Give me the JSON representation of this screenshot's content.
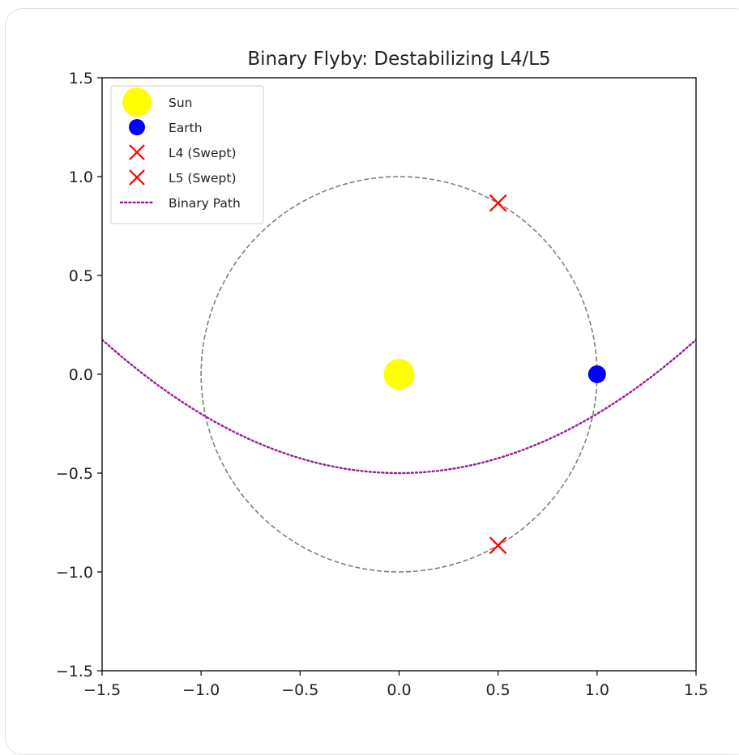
{
  "chart_data": {
    "type": "scatter",
    "title": "Binary Flyby: Destabilizing L4/L5",
    "xlabel": "",
    "ylabel": "",
    "xlim": [
      -1.5,
      1.5
    ],
    "ylim": [
      -1.5,
      1.5
    ],
    "x_ticks": [
      -1.5,
      -1.0,
      -0.5,
      0.0,
      0.5,
      1.0,
      1.5
    ],
    "y_ticks": [
      -1.5,
      -1.0,
      -0.5,
      0.0,
      0.5,
      1.0,
      1.5
    ],
    "x_tick_labels": [
      "−1.5",
      "−1.0",
      "−0.5",
      "0.0",
      "0.5",
      "1.0",
      "1.5"
    ],
    "y_tick_labels": [
      "−1.5",
      "−1.0",
      "−0.5",
      "0.0",
      "0.5",
      "1.0",
      "1.5"
    ],
    "grid": false,
    "legend_position": "top-left",
    "orbit": {
      "radius": 1.0,
      "center": [
        0,
        0
      ],
      "style": "dashed",
      "color": "#808080"
    },
    "series": [
      {
        "name": "Sun",
        "marker": "circle",
        "size": "large",
        "color": "#ffff00",
        "points": [
          [
            0.0,
            0.0
          ]
        ]
      },
      {
        "name": "Earth",
        "marker": "circle",
        "size": "medium",
        "color": "#0000ff",
        "points": [
          [
            1.0,
            0.0
          ]
        ]
      },
      {
        "name": "L4 (Swept)",
        "marker": "x",
        "color": "#ff0000",
        "points": [
          [
            0.5,
            0.866
          ]
        ]
      },
      {
        "name": "L5 (Swept)",
        "marker": "x",
        "color": "#ff0000",
        "points": [
          [
            0.5,
            -0.866
          ]
        ]
      },
      {
        "name": "Binary Path",
        "marker": "dotted-line",
        "color": "#9b1b9b",
        "equation": "y = 0.3*x^2 - 0.5",
        "x": [
          -1.5,
          -1.25,
          -1.0,
          -0.75,
          -0.5,
          -0.25,
          0.0,
          0.25,
          0.5,
          0.75,
          1.0,
          1.25,
          1.5
        ],
        "y": [
          0.175,
          -0.031,
          -0.2,
          -0.331,
          -0.425,
          -0.481,
          -0.5,
          -0.481,
          -0.425,
          -0.331,
          -0.2,
          -0.031,
          0.175
        ]
      }
    ]
  }
}
